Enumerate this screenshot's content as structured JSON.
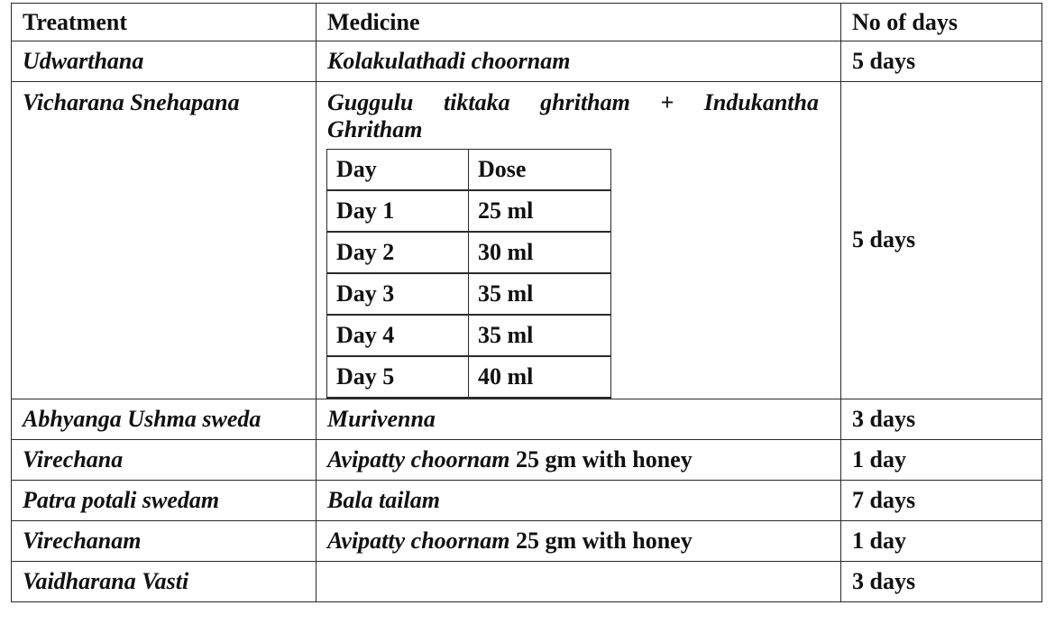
{
  "headers": {
    "treatment": "Treatment",
    "medicine": "Medicine",
    "days": "No of days"
  },
  "rows": [
    {
      "treatment": "Udwarthana",
      "medicine": "Kolakulathadi choornam",
      "days": "5 days"
    },
    {
      "treatment": "Vicharana Snehapana",
      "medicine_words": [
        "Guggulu",
        "tiktaka",
        "ghritham",
        "+",
        "Indukantha"
      ],
      "medicine_line2": "Ghritham",
      "days": "5 days",
      "dose_table": {
        "headers": [
          "Day",
          "Dose"
        ],
        "rows": [
          [
            "Day 1",
            "25 ml"
          ],
          [
            "Day 2",
            "30 ml"
          ],
          [
            "Day 3",
            "35 ml"
          ],
          [
            "Day 4",
            "35 ml"
          ],
          [
            "Day 5",
            "40 ml"
          ]
        ]
      }
    },
    {
      "treatment": "Abhyanga Ushma sweda",
      "medicine": "Murivenna",
      "days": "3 days"
    },
    {
      "treatment": "Virechana",
      "medicine_italic": "Avipatty choornam",
      "medicine_plain": " 25 gm with honey",
      "days": "1 day"
    },
    {
      "treatment": "Patra potali swedam",
      "medicine": "Bala tailam",
      "days": "7 days"
    },
    {
      "treatment": "Virechanam",
      "medicine_italic": "Avipatty choornam",
      "medicine_plain": " 25 gm with honey",
      "days": "1 day"
    },
    {
      "treatment": "Vaidharana Vasti",
      "medicine": "",
      "days": "3 days"
    }
  ]
}
